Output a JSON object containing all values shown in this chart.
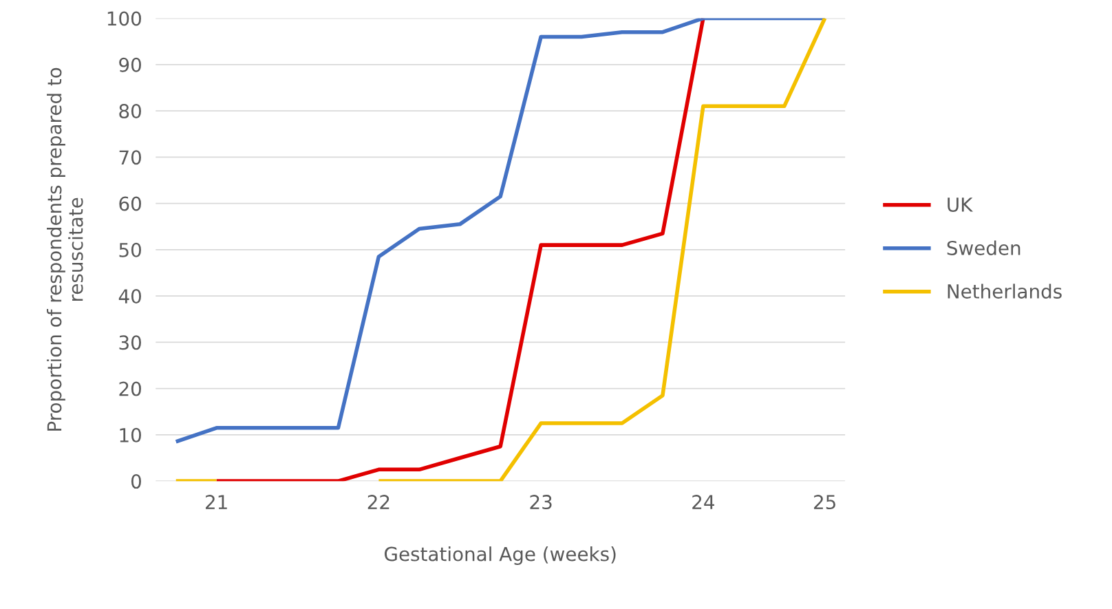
{
  "chart_data": {
    "type": "line",
    "xlabel": "Gestational Age (weeks)",
    "ylabel": "Proportion of respondents prepared to\nresuscitate",
    "categories": [
      null,
      "21",
      null,
      null,
      null,
      "22",
      null,
      null,
      null,
      "23",
      null,
      null,
      null,
      "24",
      null,
      null,
      "25"
    ],
    "series": [
      {
        "name": "UK",
        "color": "#e00000",
        "values": [
          null,
          0,
          0,
          0,
          0,
          2.5,
          2.5,
          5,
          7.5,
          51,
          51,
          51,
          53.5,
          100,
          null,
          null,
          null
        ]
      },
      {
        "name": "Sweden",
        "color": "#4472c4",
        "values": [
          8.5,
          11.5,
          11.5,
          11.5,
          11.5,
          48.5,
          54.5,
          55.5,
          61.5,
          96,
          96,
          97,
          97,
          100,
          100,
          100,
          100
        ]
      },
      {
        "name": "Netherlands",
        "color": "#f4c000",
        "values": [
          0,
          0,
          null,
          null,
          null,
          0,
          0,
          0,
          0,
          12.5,
          12.5,
          12.5,
          18.5,
          81,
          81,
          81,
          100
        ]
      }
    ],
    "ylim": [
      0,
      100
    ],
    "yticks": [
      0,
      10,
      20,
      30,
      40,
      50,
      60,
      70,
      80,
      90,
      100
    ],
    "grid": "y",
    "legend": "right",
    "marker": "none",
    "line_style": "solid"
  }
}
